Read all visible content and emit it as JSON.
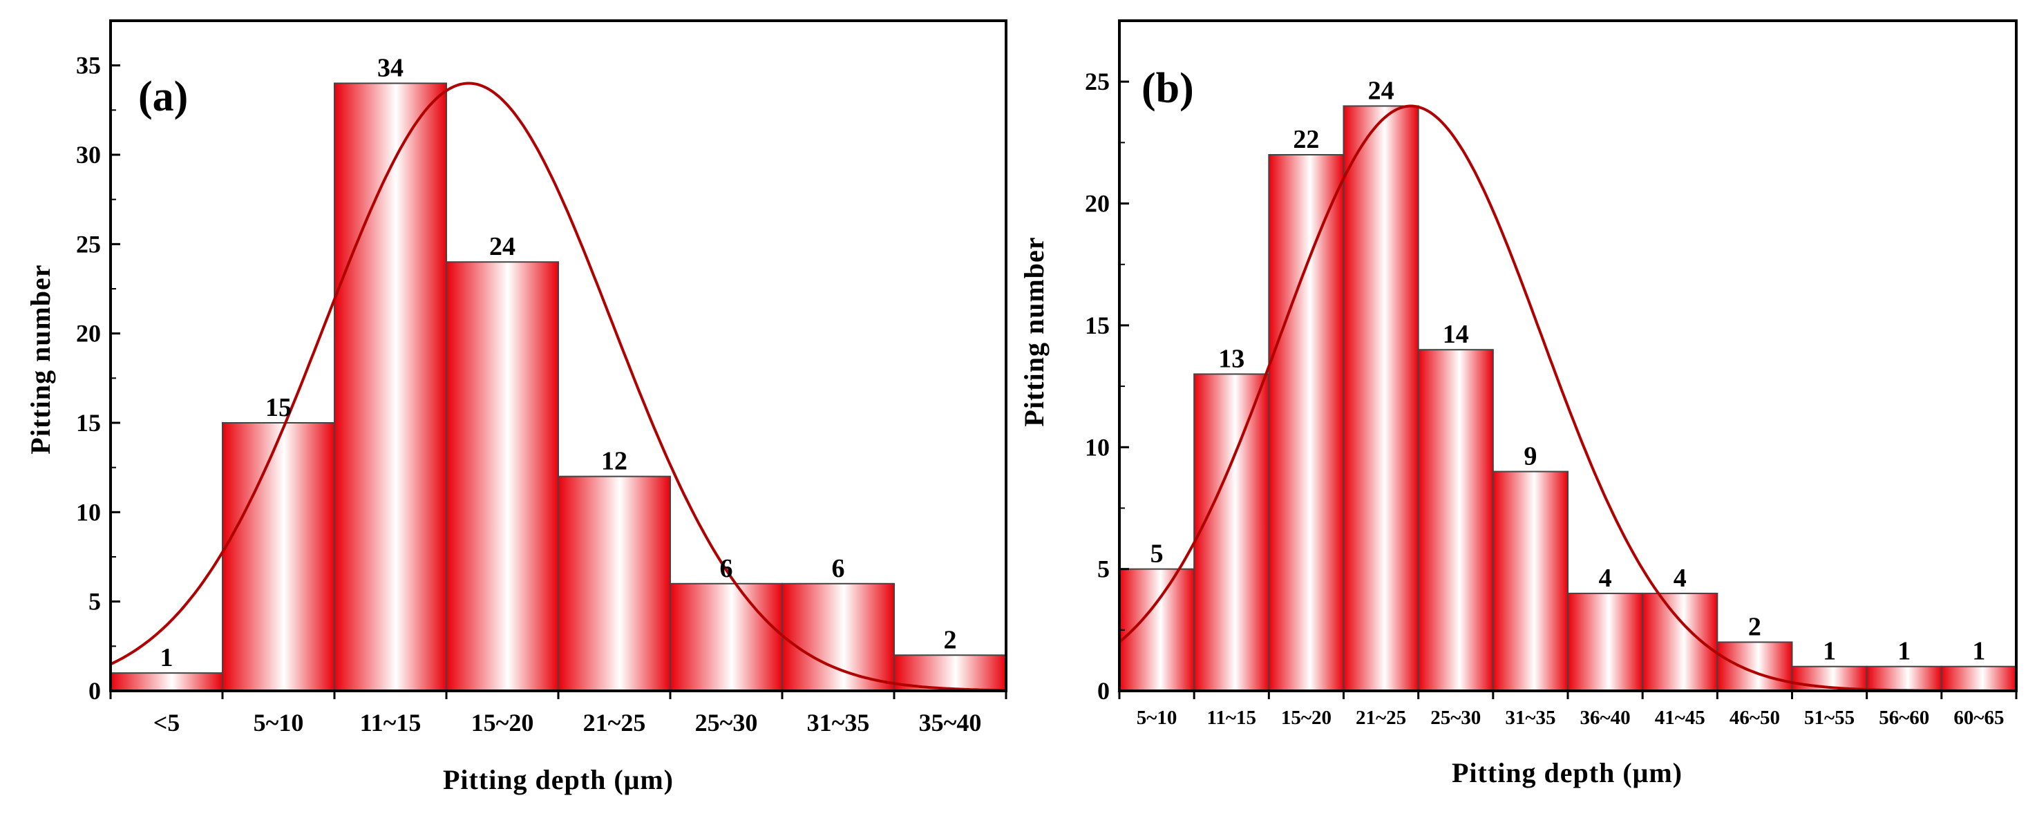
{
  "chart_data": [
    {
      "type": "bar",
      "panel_label": "(a)",
      "categories": [
        "<5",
        "5~10",
        "11~15",
        "15~20",
        "21~25",
        "25~30",
        "31~35",
        "35~40"
      ],
      "values": [
        1,
        15,
        34,
        24,
        12,
        6,
        6,
        2
      ],
      "data_labels": [
        "1",
        "15",
        "34",
        "24",
        "12",
        "6",
        "6",
        "2"
      ],
      "xlabel": "Pitting  depth (μm)",
      "ylabel": "Pitting  number",
      "ylim": [
        0,
        37.5
      ],
      "yticks": [
        0,
        5,
        10,
        15,
        20,
        25,
        30,
        35
      ],
      "ytick_labels": [
        "0",
        "5",
        "10",
        "15",
        "20",
        "25",
        "30",
        "35"
      ],
      "fit_curve": {
        "type": "gaussian",
        "amplitude": 34,
        "center": 3.2,
        "sigma": 1.28
      },
      "bar_color": "#e8000b",
      "curve_color": "#b00000"
    },
    {
      "type": "bar",
      "panel_label": "(b)",
      "categories": [
        "5~10",
        "11~15",
        "15~20",
        "21~25",
        "25~30",
        "31~35",
        "36~40",
        "41~45",
        "46~50",
        "51~55",
        "56~60",
        "60~65"
      ],
      "values": [
        5,
        13,
        22,
        24,
        14,
        9,
        4,
        4,
        2,
        1,
        1,
        1
      ],
      "data_labels": [
        "5",
        "13",
        "22",
        "24",
        "14",
        "9",
        "4",
        "4",
        "2",
        "1",
        "1",
        "1"
      ],
      "xlabel": "Pitting  depth (μm)",
      "ylabel": "Pitting  number",
      "ylim": [
        0,
        27.5
      ],
      "yticks": [
        0,
        5,
        10,
        15,
        20,
        25
      ],
      "ytick_labels": [
        "0",
        "5",
        "10",
        "15",
        "20",
        "25"
      ],
      "fit_curve": {
        "type": "gaussian",
        "amplitude": 24,
        "center": 3.9,
        "sigma": 1.75
      },
      "bar_color": "#e8000b",
      "curve_color": "#b00000"
    }
  ]
}
